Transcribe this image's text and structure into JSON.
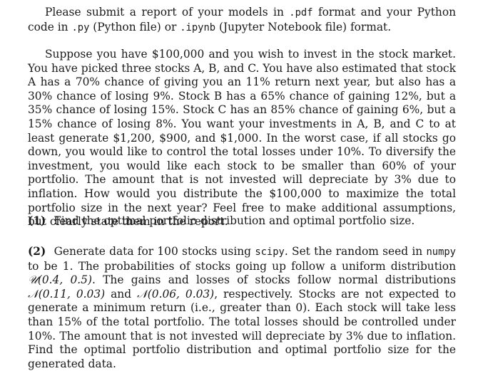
{
  "intro": {
    "t1": "Please submit a report of your models in ",
    "ext_pdf": ".pdf",
    "t2": " format and your Python code in ",
    "ext_py": ".py",
    "t3": " (Python file) or ",
    "ext_ipynb": ".ipynb",
    "t4": " (Jupyter Notebook file) format."
  },
  "problem": {
    "text": "Suppose you have $100,000 and you wish to invest in the stock market. You have picked three stocks A, B, and C. You have also estimated that stock A has a 70% chance of giving you an 11% return next year, but also has a 30% chance of losing 9%. Stock B has a 65% chance of gaining 12%, but a 35% chance of losing 15%. Stock C has an 85% chance of gaining 6%, but a 15% chance of losing 8%. You want your investments in A, B, and C to at least generate $1,200, $900, and $1,000. In the worst case, if all stocks go down, you would like to control the total losses under 10%. To diversify the investment, you would like each stock to be smaller than 60% of your portfolio. The amount that is not invested will depreciate by 3% due to inflation. How would you distribute the $100,000 to maximize the total portfolio size in the next year? Feel free to make additional assumptions, but clearly state them in the report."
  },
  "q1": {
    "label": "(1)",
    "text": "Find the optimal portfolio distribution and optimal portfolio size."
  },
  "q2": {
    "label": "(2)",
    "t1": "Generate data for 100 stocks using ",
    "code1": "scipy",
    "t2": ". Set the random seed in ",
    "code2": "numpy",
    "t3": " to be 1. The probabilities of stocks going up follow a uniform distribution ",
    "dist_u": "𝒰(0.4, 0.5)",
    "t4": ". The gains and losses of stocks follow normal distributions ",
    "dist_n1": "𝒩(0.11, 0.03)",
    "t5": " and ",
    "dist_n2": "𝒩(0.06, 0.03)",
    "t6": ", respectively. Stocks are not expected to generate a minimum return (i.e., greater than 0). Each stock will take less than 15% of the total portfolio. The total losses should be controlled under 10%. The amount that is not invested will depreciate by 3% due to inflation. Find the optimal portfolio distribution and optimal portfolio size for the generated data."
  }
}
